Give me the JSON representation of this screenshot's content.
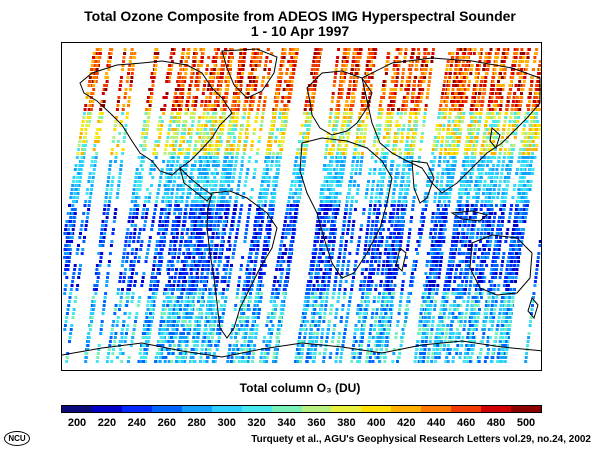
{
  "title_line1": "Total Ozone Composite from ADEOS IMG Hyperspectral Sounder",
  "title_line2": "1 - 10 Apr 1997",
  "colorbar_label": "Total column O₃ (DU)",
  "colorbar_ticks": [
    "200",
    "220",
    "240",
    "260",
    "280",
    "300",
    "320",
    "340",
    "360",
    "380",
    "400",
    "420",
    "440",
    "460",
    "480",
    "500"
  ],
  "colorbar_colors": [
    "#0a0a7a",
    "#0000c8",
    "#0028ff",
    "#0064ff",
    "#14a0ff",
    "#2ccfff",
    "#48e8ee",
    "#78f0b8",
    "#b8f080",
    "#e8f040",
    "#ffe000",
    "#ffb000",
    "#ff7800",
    "#f03c00",
    "#d00000",
    "#8c0000"
  ],
  "logo_text": "NCU",
  "citation": "Turquety et al., AGU's Geophysical Research Letters vol.29, no.24, 2002",
  "map_layers": [
    "coastlines",
    "ozone-swath-points"
  ]
}
